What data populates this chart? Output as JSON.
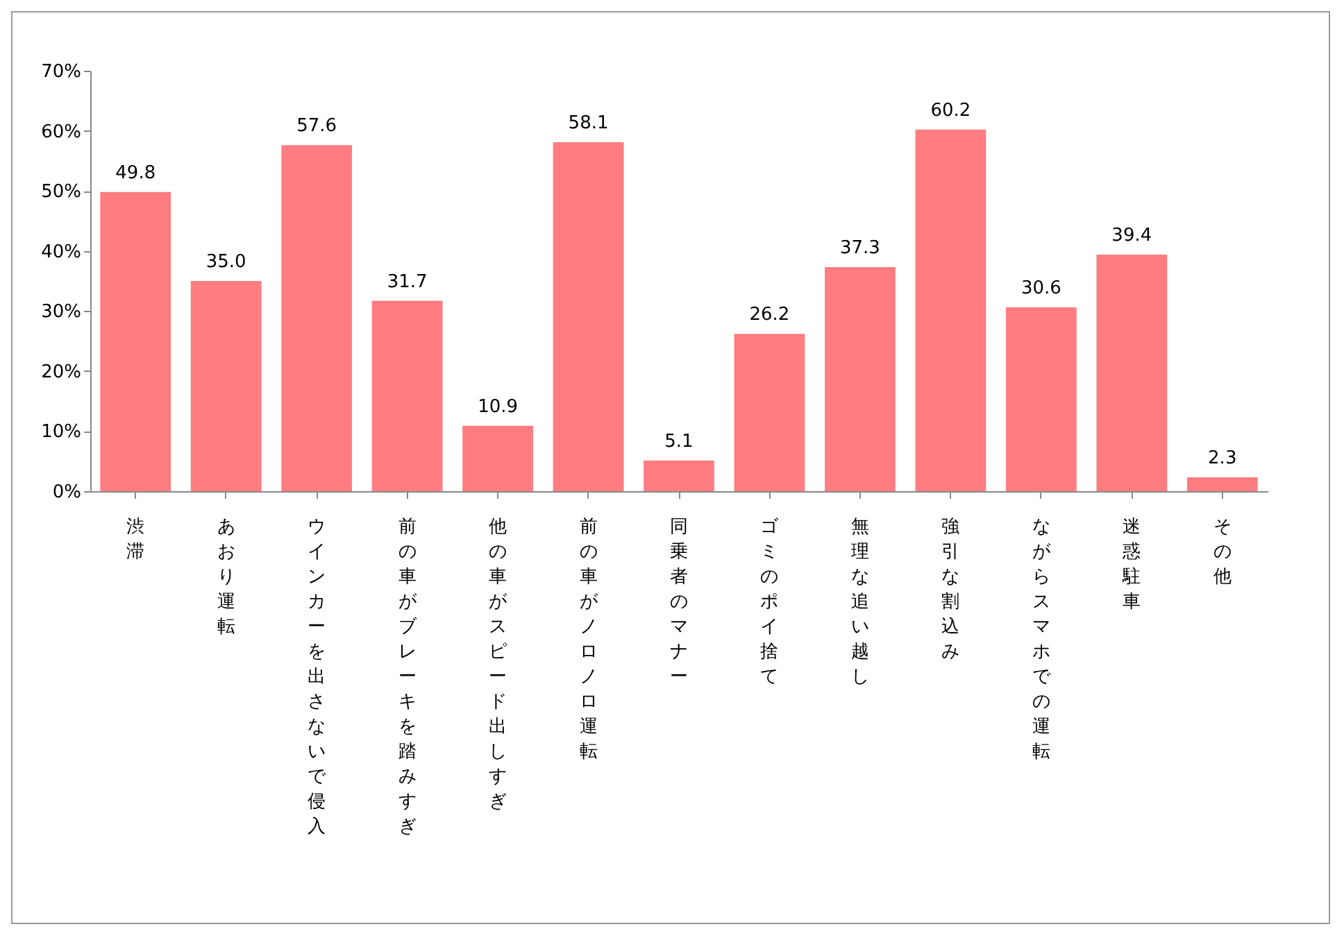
{
  "chart_data": {
    "type": "bar",
    "categories": [
      "渋滞",
      "あおり運転",
      "ウインカーを出さないで侵入",
      "前の車がブレーキを踏みすぎ",
      "他の車がスピード出しすぎ",
      "前の車がノロノロ運転",
      "同乗者のマナー",
      "ゴミのポイ捨て",
      "無理な追い越し",
      "強引な割込み",
      "ながらスマホでの運転",
      "迷惑駐車",
      "その他"
    ],
    "values": [
      49.8,
      35.0,
      57.6,
      31.7,
      10.9,
      58.1,
      5.1,
      26.2,
      37.3,
      60.2,
      30.6,
      39.4,
      2.3
    ],
    "value_labels": [
      "49.8",
      "35.0",
      "57.6",
      "31.7",
      "10.9",
      "58.1",
      "5.1",
      "26.2",
      "37.3",
      "60.2",
      "30.6",
      "39.4",
      "2.3"
    ],
    "color": "#ff7c80",
    "ylim": [
      0,
      70
    ],
    "yticks": [
      {
        "value": 0,
        "label": "0%"
      },
      {
        "value": 10,
        "label": "10%"
      },
      {
        "value": 20,
        "label": "20%"
      },
      {
        "value": 30,
        "label": "30%"
      },
      {
        "value": 40,
        "label": "40%"
      },
      {
        "value": 50,
        "label": "50%"
      },
      {
        "value": 60,
        "label": "60%"
      },
      {
        "value": 70,
        "label": "70%"
      }
    ],
    "grid": false
  }
}
